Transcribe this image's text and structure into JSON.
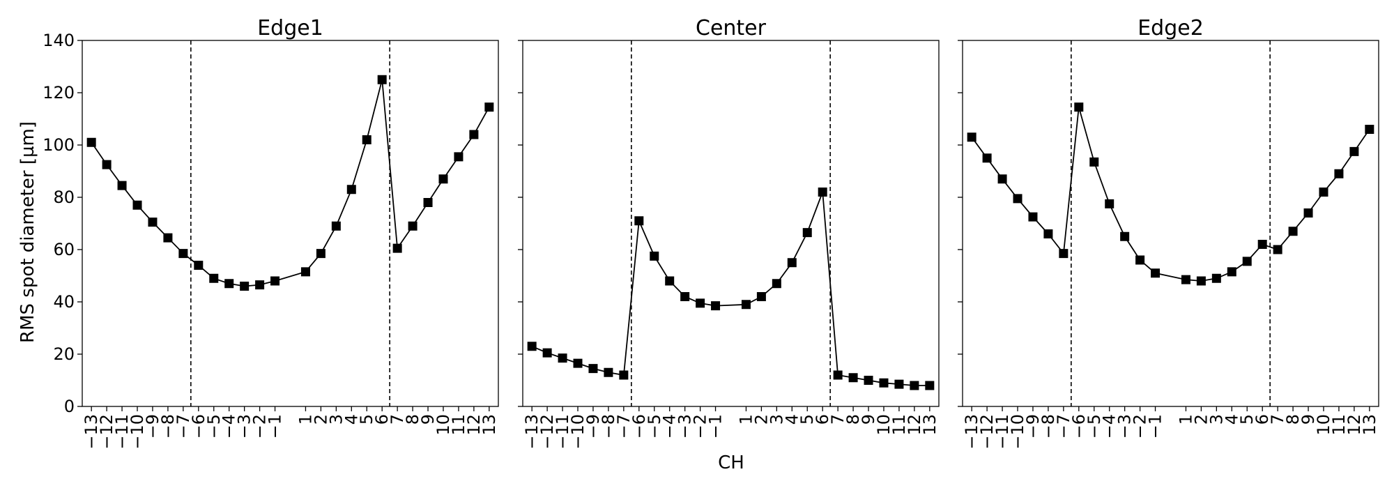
{
  "figure": {
    "xlabel": "CH",
    "ylabel": "RMS spot diameter [µm]"
  },
  "chart_data": [
    {
      "type": "line",
      "title": "Edge1",
      "x": [
        -13,
        -12,
        -11,
        -10,
        -9,
        -8,
        -7,
        -6,
        -5,
        -4,
        -3,
        -2,
        -1,
        1,
        2,
        3,
        4,
        5,
        6,
        7,
        8,
        9,
        10,
        11,
        12,
        13
      ],
      "series": [
        {
          "values": [
            101,
            92.5,
            84.5,
            77,
            70.5,
            64.5,
            58.5,
            54,
            49,
            47,
            46,
            46.5,
            48,
            51.5,
            58.5,
            69,
            83,
            102,
            125,
            60.5,
            69,
            78,
            87,
            95.5,
            104,
            114.5
          ]
        }
      ],
      "vlines": [
        -6.5,
        6.5
      ],
      "ylim": [
        0,
        140
      ],
      "yticks": [
        0,
        20,
        40,
        60,
        80,
        100,
        120,
        140
      ],
      "xtick_labels": [
        "−13",
        "−12",
        "−11",
        "−10",
        "−9",
        "−8",
        "−7",
        "−6",
        "−5",
        "−4",
        "−3",
        "−2",
        "−1",
        "1",
        "2",
        "3",
        "4",
        "5",
        "6",
        "7",
        "8",
        "9",
        "10",
        "11",
        "12",
        "13"
      ],
      "marker": "square",
      "color": "#000000",
      "grid": false
    },
    {
      "type": "line",
      "title": "Center",
      "x": [
        -13,
        -12,
        -11,
        -10,
        -9,
        -8,
        -7,
        -6,
        -5,
        -4,
        -3,
        -2,
        -1,
        1,
        2,
        3,
        4,
        5,
        6,
        7,
        8,
        9,
        10,
        11,
        12,
        13
      ],
      "series": [
        {
          "values": [
            23,
            20.5,
            18.5,
            16.5,
            14.5,
            13,
            12,
            71,
            57.5,
            48,
            42,
            39.5,
            38.5,
            39,
            42,
            47,
            55,
            66.5,
            82,
            12,
            11,
            10,
            9,
            8.5,
            8,
            8
          ]
        }
      ],
      "vlines": [
        -6.5,
        6.5
      ],
      "ylim": [
        0,
        140
      ],
      "yticks": [
        0,
        20,
        40,
        60,
        80,
        100,
        120,
        140
      ],
      "xtick_labels": [
        "−13",
        "−12",
        "−11",
        "−10",
        "−9",
        "−8",
        "−7",
        "−6",
        "−5",
        "−4",
        "−3",
        "−2",
        "−1",
        "1",
        "2",
        "3",
        "4",
        "5",
        "6",
        "7",
        "8",
        "9",
        "10",
        "11",
        "12",
        "13"
      ],
      "marker": "square",
      "color": "#000000",
      "grid": false
    },
    {
      "type": "line",
      "title": "Edge2",
      "x": [
        -13,
        -12,
        -11,
        -10,
        -9,
        -8,
        -7,
        -6,
        -5,
        -4,
        -3,
        -2,
        -1,
        1,
        2,
        3,
        4,
        5,
        6,
        7,
        8,
        9,
        10,
        11,
        12,
        13
      ],
      "series": [
        {
          "values": [
            103,
            95,
            87,
            79.5,
            72.5,
            66,
            58.5,
            114.5,
            93.5,
            77.5,
            65,
            56,
            51,
            48.5,
            48,
            49,
            51.5,
            55.5,
            62,
            60,
            67,
            74,
            82,
            89,
            97.5,
            106
          ]
        }
      ],
      "vlines": [
        -6.5,
        6.5
      ],
      "ylim": [
        0,
        140
      ],
      "yticks": [
        0,
        20,
        40,
        60,
        80,
        100,
        120,
        140
      ],
      "xtick_labels": [
        "−13",
        "−12",
        "−11",
        "−10",
        "−9",
        "−8",
        "−7",
        "−6",
        "−5",
        "−4",
        "−3",
        "−2",
        "−1",
        "1",
        "2",
        "3",
        "4",
        "5",
        "6",
        "7",
        "8",
        "9",
        "10",
        "11",
        "12",
        "13"
      ],
      "marker": "square",
      "color": "#000000",
      "grid": false
    }
  ]
}
